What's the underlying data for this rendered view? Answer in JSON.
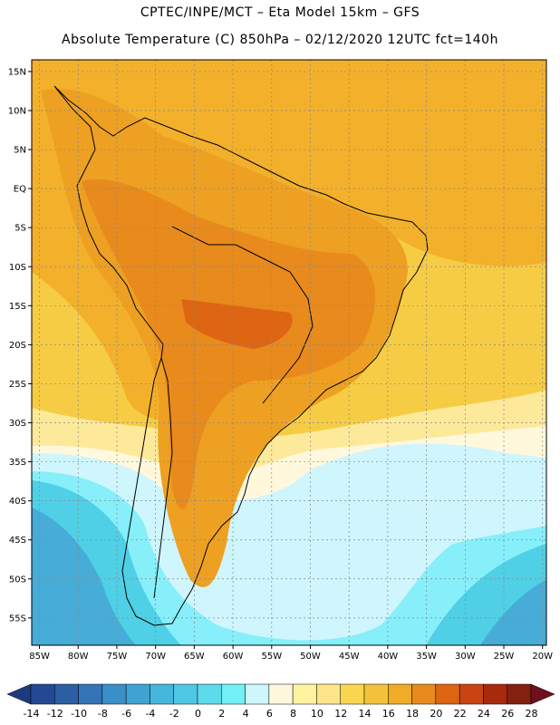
{
  "header": {
    "line1": "CPTEC/INPE/MCT –   Eta Model 15km – GFS",
    "line2": "Absolute Temperature (C) 850hPa – 02/12/2020 12UTC fct=140h"
  },
  "map": {
    "lon_range": [
      -86,
      -19.5
    ],
    "lat_range": [
      -58.5,
      16.5
    ],
    "lon_ticks": [
      {
        "value": -85,
        "label": "85W"
      },
      {
        "value": -80,
        "label": "80W"
      },
      {
        "value": -75,
        "label": "75W"
      },
      {
        "value": -70,
        "label": "70W"
      },
      {
        "value": -65,
        "label": "65W"
      },
      {
        "value": -60,
        "label": "60W"
      },
      {
        "value": -55,
        "label": "55W"
      },
      {
        "value": -50,
        "label": "50W"
      },
      {
        "value": -45,
        "label": "45W"
      },
      {
        "value": -40,
        "label": "40W"
      },
      {
        "value": -35,
        "label": "35W"
      },
      {
        "value": -30,
        "label": "30W"
      },
      {
        "value": -25,
        "label": "25W"
      },
      {
        "value": -20,
        "label": "20W"
      }
    ],
    "lat_ticks": [
      {
        "value": 15,
        "label": "15N"
      },
      {
        "value": 10,
        "label": "10N"
      },
      {
        "value": 5,
        "label": "5N"
      },
      {
        "value": 0,
        "label": "EQ"
      },
      {
        "value": -5,
        "label": "5S"
      },
      {
        "value": -10,
        "label": "10S"
      },
      {
        "value": -15,
        "label": "15S"
      },
      {
        "value": -20,
        "label": "20S"
      },
      {
        "value": -25,
        "label": "25S"
      },
      {
        "value": -30,
        "label": "30S"
      },
      {
        "value": -35,
        "label": "35S"
      },
      {
        "value": -40,
        "label": "40S"
      },
      {
        "value": -45,
        "label": "45S"
      },
      {
        "value": -50,
        "label": "50S"
      },
      {
        "value": -55,
        "label": "55S"
      }
    ],
    "colors": {
      "ocean_north": "#f3b02b",
      "warm": "#eda022",
      "hot": "#e88a1c",
      "hotter": "#de6512",
      "mid": "#f6cc45",
      "pale_yellow": "#fde99a",
      "cream": "#fff8dc",
      "pale_cyan": "#cff5fd",
      "cyan": "#86effa",
      "teal": "#4fd0e6",
      "steel": "#47acd8",
      "deep": "#3a8fc8",
      "coast": "#000000"
    }
  },
  "colorbar": {
    "labels": [
      "-14",
      "-12",
      "-10",
      "-8",
      "-6",
      "-4",
      "-2",
      "0",
      "2",
      "4",
      "6",
      "8",
      "10",
      "12",
      "14",
      "16",
      "18",
      "20",
      "22",
      "24",
      "26",
      "28"
    ],
    "colors": [
      "#244894",
      "#2b5ea3",
      "#3474b6",
      "#3a8fc8",
      "#3fa3d2",
      "#47b6dc",
      "#4fc8e4",
      "#5edbeb",
      "#72f0f5",
      "#cff5fd",
      "#fff8dc",
      "#fff3a0",
      "#fde68a",
      "#f9d64e",
      "#f4c23a",
      "#efac26",
      "#e88a1c",
      "#de6512",
      "#c84410",
      "#a82a0c",
      "#832010"
    ],
    "left_arrow": "#1e3a7e",
    "right_arrow": "#6d1020"
  }
}
